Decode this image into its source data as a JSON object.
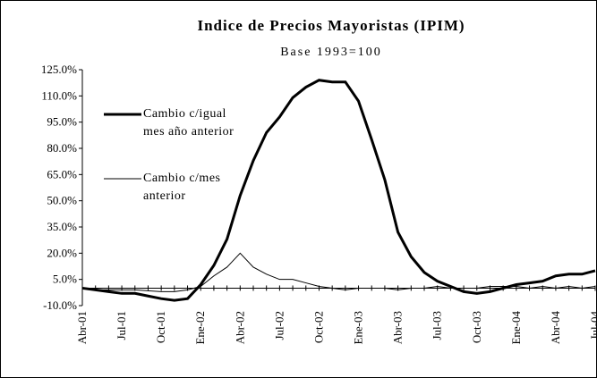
{
  "chart_data": {
    "type": "line",
    "title": "Indice de Precios Mayoristas (IPIM)",
    "subtitle": "Base 1993=100",
    "categories": [
      "Abr-01",
      null,
      null,
      "Jul-01",
      null,
      null,
      "Oct-01",
      null,
      null,
      "Ene-02",
      null,
      null,
      "Abr-02",
      null,
      null,
      "Jul-02",
      null,
      null,
      "Oct-02",
      null,
      null,
      "Ene-03",
      null,
      null,
      "Abr-03",
      null,
      null,
      "Jul-03",
      null,
      null,
      "Oct-03",
      null,
      null,
      "Ene-04",
      null,
      null,
      "Abr-04",
      null,
      null,
      "Jul-04"
    ],
    "series": [
      {
        "name": "Cambio c/igual mes año anterior",
        "color": "#000000",
        "width": 3,
        "values": [
          0,
          -1,
          -2,
          -3,
          -3,
          -4.5,
          -6,
          -7,
          -6,
          2,
          13,
          28,
          53,
          73,
          89,
          98,
          109,
          115,
          119,
          118,
          118,
          107,
          85,
          62,
          32,
          18,
          9,
          4,
          1,
          -2,
          -3,
          -2,
          0,
          2,
          3,
          4,
          7,
          8,
          8,
          10
        ]
      },
      {
        "name": "Cambio c/mes anterior",
        "color": "#000000",
        "width": 1,
        "values": [
          0,
          -1,
          -1,
          -1,
          -1,
          -1.5,
          -2,
          -2,
          -1,
          1,
          7,
          12,
          20,
          12,
          8,
          5,
          5,
          3,
          1,
          0,
          -1,
          0,
          0,
          0,
          -1,
          0,
          0,
          1,
          0,
          0,
          0,
          1,
          1,
          1,
          0,
          1,
          0,
          1,
          0,
          1
        ]
      }
    ],
    "ylim": [
      -10,
      125
    ],
    "yticks": [
      {
        "value": -10,
        "label": "-10.0%"
      },
      {
        "value": 5,
        "label": "5.0%"
      },
      {
        "value": 20,
        "label": "20.0%"
      },
      {
        "value": 35,
        "label": "35.0%"
      },
      {
        "value": 50,
        "label": "50.0%"
      },
      {
        "value": 65,
        "label": "65.0%"
      },
      {
        "value": 80,
        "label": "80.0%"
      },
      {
        "value": 95,
        "label": "95.0%"
      },
      {
        "value": 110,
        "label": "110.0%"
      },
      {
        "value": 125,
        "label": "125.0%"
      }
    ],
    "grid": false
  }
}
